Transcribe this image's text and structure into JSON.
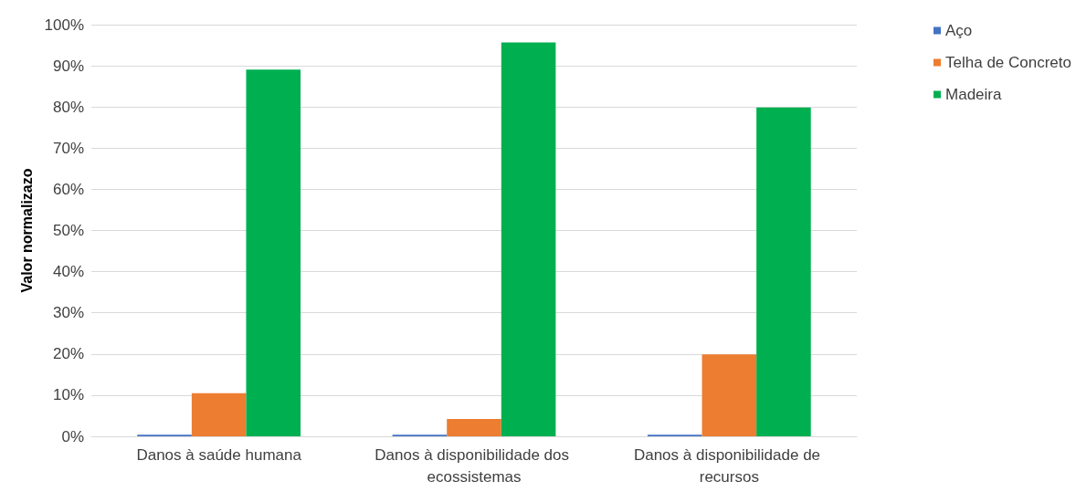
{
  "chart_data": {
    "type": "bar",
    "ylabel": "Valor normalizazo",
    "categories": [
      "Danos à saúde humana",
      "Danos à disponibilidade dos ecossistemas",
      "Danos à disponibilidade de recursos"
    ],
    "series": [
      {
        "name": "Aço",
        "color": "#4472c4",
        "values": [
          0.4,
          0.4,
          0.4
        ]
      },
      {
        "name": "Telha de Concreto",
        "color": "#ed7d31",
        "values": [
          10.5,
          4.2,
          19.9
        ]
      },
      {
        "name": "Madeira",
        "color": "#00b050",
        "values": [
          89.1,
          95.7,
          79.9
        ]
      }
    ],
    "ylim": [
      0,
      100
    ],
    "yticks": [
      {
        "value": 0,
        "label": "0%"
      },
      {
        "value": 10,
        "label": "10%"
      },
      {
        "value": 20,
        "label": "20%"
      },
      {
        "value": 30,
        "label": "30%"
      },
      {
        "value": 40,
        "label": "40%"
      },
      {
        "value": 50,
        "label": "50%"
      },
      {
        "value": 60,
        "label": "60%"
      },
      {
        "value": 70,
        "label": "70%"
      },
      {
        "value": 80,
        "label": "80%"
      },
      {
        "value": 90,
        "label": "90%"
      },
      {
        "value": 100,
        "label": "100%"
      }
    ],
    "grid": "y",
    "legend": "right"
  }
}
